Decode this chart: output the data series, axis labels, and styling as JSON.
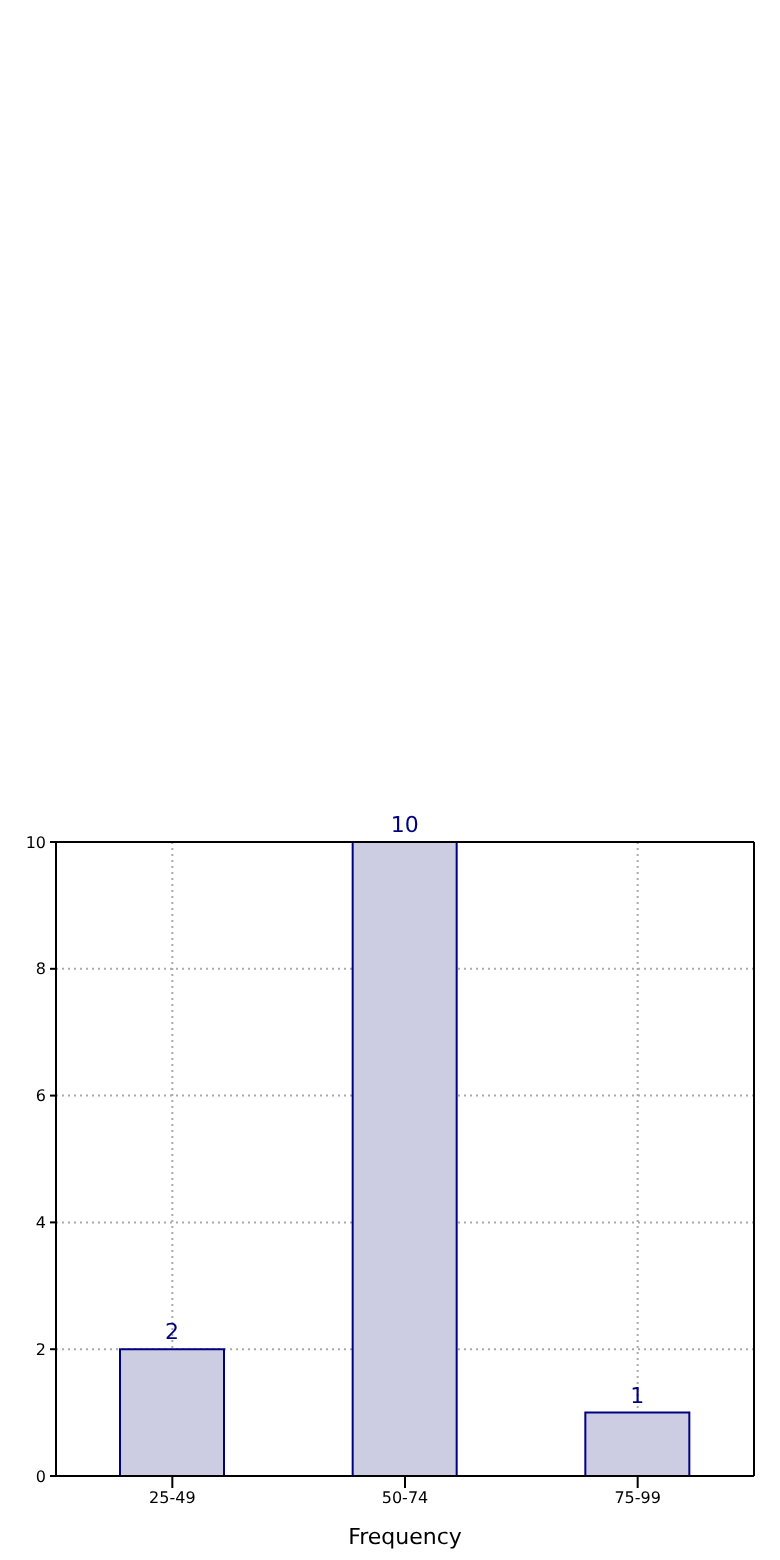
{
  "chart_data": {
    "type": "bar",
    "xlabel": "Frequency",
    "categories": [
      "25-49",
      "50-74",
      "75-99"
    ],
    "values": [
      2,
      10,
      1
    ],
    "color": "#cccce3",
    "ylim": [
      0,
      10
    ],
    "yticks": [
      0,
      2,
      4,
      6,
      8,
      10
    ],
    "grid": true,
    "data_labels": true
  }
}
